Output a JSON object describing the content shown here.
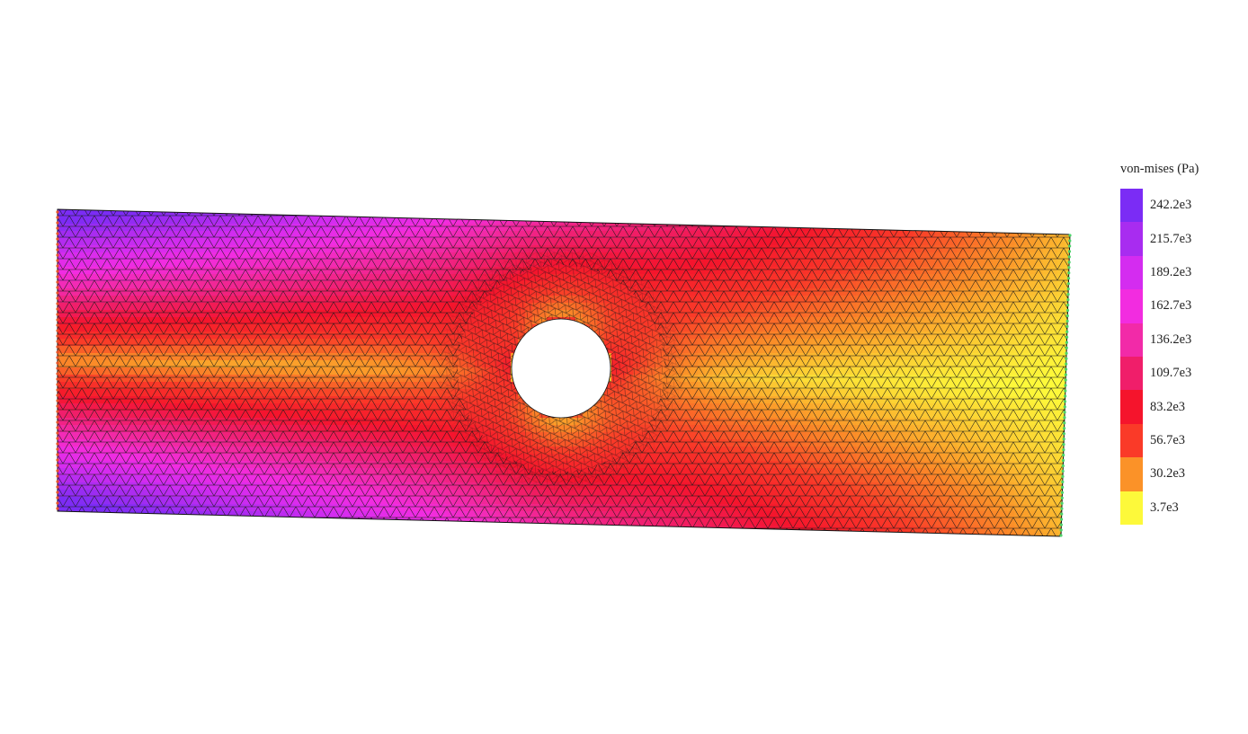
{
  "chart_data": {
    "type": "heatmap",
    "title": "",
    "xlabel": "",
    "ylabel": "",
    "field": "von-mises",
    "unit": "Pa",
    "legend": {
      "title": "von-mises (Pa)",
      "placement": "right",
      "levels": [
        {
          "label": "242.2e3",
          "value": 242200,
          "color": "#7b2cf5"
        },
        {
          "label": "215.7e3",
          "value": 215700,
          "color": "#a82cf0"
        },
        {
          "label": "189.2e3",
          "value": 189200,
          "color": "#d42cf0"
        },
        {
          "label": "162.7e3",
          "value": 162700,
          "color": "#f22ce0"
        },
        {
          "label": "136.2e3",
          "value": 136200,
          "color": "#f22aa8"
        },
        {
          "label": "109.7e3",
          "value": 109700,
          "color": "#f01e6a"
        },
        {
          "label": "83.2e3",
          "value": 83200,
          "color": "#f5142c"
        },
        {
          "label": "56.7e3",
          "value": 56700,
          "color": "#fa3a28"
        },
        {
          "label": "30.2e3",
          "value": 30200,
          "color": "#fb9228"
        },
        {
          "label": "3.7e3",
          "value": 3700,
          "color": "#fdf93a"
        }
      ]
    },
    "geometry": "rectangular plate with central circular hole, triangular mesh, slightly deformed",
    "grid": false
  }
}
